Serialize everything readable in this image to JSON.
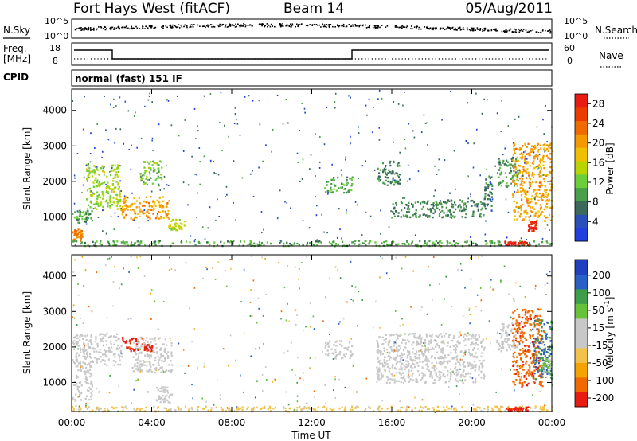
{
  "header": {
    "station": "Fort Hays West (fitACF)",
    "beam": "Beam 14",
    "date": "05/Aug/2011"
  },
  "status_panels": {
    "nsky_label": "N.Sky",
    "nsearch_label": "N.Search",
    "noise_ticks_left": [
      "10^5",
      "10^0"
    ],
    "noise_ticks_right": [
      "10^5",
      "10^0"
    ],
    "freq_label_line1": "Freq.",
    "freq_label_line2": "[MHz]",
    "freq_ticks": [
      "18",
      "8"
    ],
    "nave_label": "Nave",
    "nave_ticks": [
      "60",
      "0"
    ],
    "cpid_label": "CPID",
    "cpid_text": "normal (fast) 151 IF"
  },
  "chart_data": [
    {
      "type": "heatmap",
      "title": "",
      "xlabel": "Time UT",
      "ylabel": "Slant Range [km]",
      "xlim": [
        "00:00",
        "24:00"
      ],
      "ylim": [
        180,
        4600
      ],
      "x_ticks": [
        "00:00",
        "04:00",
        "08:00",
        "12:00",
        "16:00",
        "20:00",
        "00:00"
      ],
      "y_ticks": [
        1000,
        2000,
        3000,
        4000
      ],
      "colorbar": {
        "label": "Power [dB]",
        "ticks": [
          "4",
          "8",
          "12",
          "16",
          "20",
          "24",
          "28"
        ],
        "range": [
          0,
          30
        ],
        "colors": [
          "#1f3fdf",
          "#2a4fb8",
          "#3b6a5a",
          "#4a9f4a",
          "#6ccf3a",
          "#b9d400",
          "#f0c000",
          "#f49a00",
          "#f06a00",
          "#ec3b00",
          "#e81c10"
        ]
      },
      "echo_regions": [
        {
          "t": [
            0.0,
            0.5
          ],
          "r": [
            350,
            700
          ],
          "value": 22
        },
        {
          "t": [
            0.0,
            1.0
          ],
          "r": [
            850,
            1200
          ],
          "value": 9
        },
        {
          "t": [
            0.7,
            2.4
          ],
          "r": [
            1200,
            2500
          ],
          "value": 14
        },
        {
          "t": [
            2.4,
            4.9
          ],
          "r": [
            950,
            1600
          ],
          "value": 20
        },
        {
          "t": [
            3.4,
            4.5
          ],
          "r": [
            1900,
            2600
          ],
          "value": 12
        },
        {
          "t": [
            4.8,
            5.6
          ],
          "r": [
            650,
            950
          ],
          "value": 15
        },
        {
          "t": [
            0.0,
            24.0
          ],
          "r": [
            200,
            350
          ],
          "value": 10
        },
        {
          "t": [
            12.6,
            14.0
          ],
          "r": [
            1700,
            2200
          ],
          "value": 10
        },
        {
          "t": [
            15.2,
            16.4
          ],
          "r": [
            1900,
            2600
          ],
          "value": 8
        },
        {
          "t": [
            16.0,
            20.6
          ],
          "r": [
            1000,
            1500
          ],
          "value": 8
        },
        {
          "t": [
            20.6,
            21.0
          ],
          "r": [
            1200,
            2200
          ],
          "value": 7
        },
        {
          "t": [
            21.2,
            22.3
          ],
          "r": [
            1900,
            2700
          ],
          "value": 9
        },
        {
          "t": [
            22.0,
            24.0
          ],
          "r": [
            900,
            3100
          ],
          "value": 20
        },
        {
          "t": [
            22.8,
            23.2
          ],
          "r": [
            600,
            900
          ],
          "value": 28
        },
        {
          "t": [
            21.6,
            22.8
          ],
          "r": [
            230,
            330
          ],
          "value": 28
        }
      ]
    },
    {
      "type": "heatmap",
      "title": "",
      "xlabel": "Time UT",
      "ylabel": "Slant Range [km]",
      "xlim": [
        "00:00",
        "24:00"
      ],
      "ylim": [
        180,
        4600
      ],
      "x_ticks": [
        "00:00",
        "04:00",
        "08:00",
        "12:00",
        "16:00",
        "20:00",
        "00:00"
      ],
      "y_ticks": [
        1000,
        2000,
        3000,
        4000
      ],
      "colorbar": {
        "label": "Velocity [m s^-1]",
        "ticks": [
          "200",
          "100",
          "50",
          "15",
          "-15",
          "-50",
          "-100",
          "-200"
        ],
        "range": [
          -250,
          250
        ],
        "colors": [
          "#e81c10",
          "#f06a00",
          "#f5a300",
          "#f3c24a",
          "#c8c8c8",
          "#c8c8c8",
          "#67c23a",
          "#3f9e4a",
          "#2a5fc8",
          "#2040c0"
        ]
      },
      "echo_regions": [
        {
          "t": [
            0.0,
            1.0
          ],
          "r": [
            500,
            1500
          ],
          "value": 0
        },
        {
          "t": [
            0.0,
            2.5
          ],
          "r": [
            1500,
            2400
          ],
          "value": 0
        },
        {
          "t": [
            2.5,
            3.5
          ],
          "r": [
            1900,
            2300
          ],
          "value": -220
        },
        {
          "t": [
            3.6,
            4.0
          ],
          "r": [
            1900,
            2100
          ],
          "value": -220
        },
        {
          "t": [
            3.0,
            5.0
          ],
          "r": [
            1300,
            2300
          ],
          "value": 0
        },
        {
          "t": [
            4.2,
            5.0
          ],
          "r": [
            450,
            900
          ],
          "value": 0
        },
        {
          "t": [
            0.0,
            24.0
          ],
          "r": [
            200,
            350
          ],
          "value": -70
        },
        {
          "t": [
            12.6,
            14.0
          ],
          "r": [
            1700,
            2200
          ],
          "value": 0
        },
        {
          "t": [
            15.2,
            20.6
          ],
          "r": [
            1000,
            2400
          ],
          "value": 0
        },
        {
          "t": [
            21.2,
            22.3
          ],
          "r": [
            1900,
            2700
          ],
          "value": 0
        },
        {
          "t": [
            22.0,
            23.5
          ],
          "r": [
            900,
            3100
          ],
          "value": -180
        },
        {
          "t": [
            23.0,
            24.0
          ],
          "r": [
            1100,
            2800
          ],
          "value": 150
        },
        {
          "t": [
            23.5,
            24.0
          ],
          "r": [
            1300,
            1700
          ],
          "value": 60
        },
        {
          "t": [
            21.6,
            22.8
          ],
          "r": [
            230,
            330
          ],
          "value": -220
        }
      ]
    }
  ]
}
